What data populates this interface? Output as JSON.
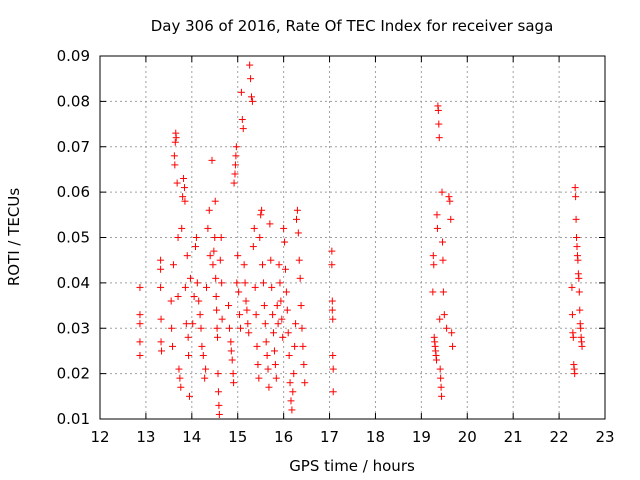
{
  "chart_data": {
    "type": "scatter",
    "title": "Day 306 of 2016, Rate Of TEC Index for receiver saga",
    "xlabel": "GPS time / hours",
    "ylabel": "ROTI / TECUs",
    "xlim": [
      12,
      23
    ],
    "ylim": [
      0.01,
      0.09
    ],
    "xticks": [
      "12",
      "13",
      "14",
      "15",
      "16",
      "17",
      "18",
      "19",
      "20",
      "21",
      "22",
      "23"
    ],
    "yticks": [
      "0.01",
      "0.02",
      "0.03",
      "0.04",
      "0.05",
      "0.06",
      "0.07",
      "0.08",
      "0.09"
    ],
    "grid": true,
    "marker": "+",
    "color": "#ff0000",
    "series": [
      {
        "name": "ROTI",
        "points": [
          [
            12.87,
            0.039
          ],
          [
            12.87,
            0.033
          ],
          [
            12.87,
            0.031
          ],
          [
            12.87,
            0.027
          ],
          [
            12.87,
            0.024
          ],
          [
            13.32,
            0.045
          ],
          [
            13.32,
            0.043
          ],
          [
            13.32,
            0.039
          ],
          [
            13.33,
            0.032
          ],
          [
            13.33,
            0.027
          ],
          [
            13.34,
            0.025
          ],
          [
            13.55,
            0.036
          ],
          [
            13.56,
            0.03
          ],
          [
            13.58,
            0.026
          ],
          [
            13.6,
            0.044
          ],
          [
            13.62,
            0.068
          ],
          [
            13.63,
            0.066
          ],
          [
            13.64,
            0.071
          ],
          [
            13.65,
            0.073
          ],
          [
            13.66,
            0.072
          ],
          [
            13.68,
            0.062
          ],
          [
            13.7,
            0.05
          ],
          [
            13.7,
            0.037
          ],
          [
            13.72,
            0.021
          ],
          [
            13.74,
            0.019
          ],
          [
            13.76,
            0.017
          ],
          [
            13.78,
            0.052
          ],
          [
            13.8,
            0.059
          ],
          [
            13.82,
            0.063
          ],
          [
            13.84,
            0.061
          ],
          [
            13.85,
            0.058
          ],
          [
            13.86,
            0.039
          ],
          [
            13.88,
            0.031
          ],
          [
            13.9,
            0.046
          ],
          [
            13.92,
            0.028
          ],
          [
            13.93,
            0.024
          ],
          [
            13.95,
            0.015
          ],
          [
            13.97,
            0.041
          ],
          [
            14.02,
            0.031
          ],
          [
            14.05,
            0.037
          ],
          [
            14.08,
            0.048
          ],
          [
            14.1,
            0.05
          ],
          [
            14.12,
            0.04
          ],
          [
            14.15,
            0.036
          ],
          [
            14.18,
            0.033
          ],
          [
            14.2,
            0.03
          ],
          [
            14.22,
            0.026
          ],
          [
            14.25,
            0.024
          ],
          [
            14.28,
            0.019
          ],
          [
            14.3,
            0.021
          ],
          [
            14.32,
            0.039
          ],
          [
            14.35,
            0.052
          ],
          [
            14.38,
            0.056
          ],
          [
            14.4,
            0.046
          ],
          [
            14.44,
            0.067
          ],
          [
            14.46,
            0.044
          ],
          [
            14.48,
            0.047
          ],
          [
            14.5,
            0.05
          ],
          [
            14.51,
            0.058
          ],
          [
            14.52,
            0.041
          ],
          [
            14.53,
            0.037
          ],
          [
            14.54,
            0.034
          ],
          [
            14.55,
            0.03
          ],
          [
            14.56,
            0.028
          ],
          [
            14.57,
            0.02
          ],
          [
            14.58,
            0.016
          ],
          [
            14.59,
            0.013
          ],
          [
            14.6,
            0.011
          ],
          [
            14.62,
            0.045
          ],
          [
            14.64,
            0.05
          ],
          [
            14.65,
            0.04
          ],
          [
            14.66,
            0.032
          ],
          [
            14.8,
            0.035
          ],
          [
            14.82,
            0.03
          ],
          [
            14.85,
            0.027
          ],
          [
            14.86,
            0.025
          ],
          [
            14.88,
            0.023
          ],
          [
            14.9,
            0.02
          ],
          [
            14.91,
            0.018
          ],
          [
            14.92,
            0.062
          ],
          [
            14.94,
            0.064
          ],
          [
            14.95,
            0.066
          ],
          [
            14.96,
            0.068
          ],
          [
            14.97,
            0.07
          ],
          [
            14.98,
            0.04
          ],
          [
            15.0,
            0.046
          ],
          [
            15.02,
            0.038
          ],
          [
            15.04,
            0.033
          ],
          [
            15.06,
            0.03
          ],
          [
            15.08,
            0.082
          ],
          [
            15.1,
            0.076
          ],
          [
            15.12,
            0.074
          ],
          [
            15.14,
            0.044
          ],
          [
            15.16,
            0.04
          ],
          [
            15.18,
            0.036
          ],
          [
            15.2,
            0.034
          ],
          [
            15.22,
            0.031
          ],
          [
            15.24,
            0.029
          ],
          [
            15.26,
            0.088
          ],
          [
            15.28,
            0.085
          ],
          [
            15.3,
            0.081
          ],
          [
            15.32,
            0.08
          ],
          [
            15.34,
            0.048
          ],
          [
            15.36,
            0.052
          ],
          [
            15.38,
            0.039
          ],
          [
            15.4,
            0.033
          ],
          [
            15.42,
            0.026
          ],
          [
            15.44,
            0.022
          ],
          [
            15.46,
            0.019
          ],
          [
            15.48,
            0.05
          ],
          [
            15.5,
            0.055
          ],
          [
            15.52,
            0.056
          ],
          [
            15.54,
            0.044
          ],
          [
            15.56,
            0.04
          ],
          [
            15.58,
            0.035
          ],
          [
            15.6,
            0.031
          ],
          [
            15.62,
            0.027
          ],
          [
            15.64,
            0.024
          ],
          [
            15.66,
            0.021
          ],
          [
            15.68,
            0.017
          ],
          [
            15.7,
            0.053
          ],
          [
            15.72,
            0.045
          ],
          [
            15.74,
            0.039
          ],
          [
            15.76,
            0.033
          ],
          [
            15.78,
            0.029
          ],
          [
            15.8,
            0.025
          ],
          [
            15.82,
            0.022
          ],
          [
            15.84,
            0.019
          ],
          [
            15.86,
            0.035
          ],
          [
            15.88,
            0.031
          ],
          [
            15.9,
            0.044
          ],
          [
            15.92,
            0.04
          ],
          [
            15.94,
            0.036
          ],
          [
            15.96,
            0.032
          ],
          [
            15.98,
            0.028
          ],
          [
            16.0,
            0.052
          ],
          [
            16.02,
            0.049
          ],
          [
            16.04,
            0.043
          ],
          [
            16.06,
            0.038
          ],
          [
            16.08,
            0.034
          ],
          [
            16.1,
            0.029
          ],
          [
            16.12,
            0.024
          ],
          [
            16.14,
            0.018
          ],
          [
            16.16,
            0.014
          ],
          [
            16.18,
            0.012
          ],
          [
            16.2,
            0.016
          ],
          [
            16.22,
            0.02
          ],
          [
            16.24,
            0.026
          ],
          [
            16.26,
            0.031
          ],
          [
            16.28,
            0.054
          ],
          [
            16.3,
            0.056
          ],
          [
            16.32,
            0.051
          ],
          [
            16.34,
            0.045
          ],
          [
            16.36,
            0.041
          ],
          [
            16.38,
            0.035
          ],
          [
            16.4,
            0.03
          ],
          [
            16.42,
            0.026
          ],
          [
            16.44,
            0.022
          ],
          [
            16.46,
            0.018
          ],
          [
            17.05,
            0.047
          ],
          [
            17.05,
            0.044
          ],
          [
            17.06,
            0.036
          ],
          [
            17.06,
            0.034
          ],
          [
            17.07,
            0.032
          ],
          [
            17.07,
            0.024
          ],
          [
            17.08,
            0.021
          ],
          [
            17.08,
            0.016
          ],
          [
            19.25,
            0.038
          ],
          [
            19.26,
            0.046
          ],
          [
            19.27,
            0.044
          ],
          [
            19.28,
            0.028
          ],
          [
            19.29,
            0.027
          ],
          [
            19.3,
            0.026
          ],
          [
            19.31,
            0.025
          ],
          [
            19.32,
            0.024
          ],
          [
            19.33,
            0.023
          ],
          [
            19.34,
            0.055
          ],
          [
            19.35,
            0.052
          ],
          [
            19.36,
            0.079
          ],
          [
            19.37,
            0.078
          ],
          [
            19.38,
            0.075
          ],
          [
            19.39,
            0.072
          ],
          [
            19.4,
            0.032
          ],
          [
            19.41,
            0.021
          ],
          [
            19.42,
            0.019
          ],
          [
            19.43,
            0.017
          ],
          [
            19.44,
            0.015
          ],
          [
            19.45,
            0.06
          ],
          [
            19.46,
            0.049
          ],
          [
            19.47,
            0.045
          ],
          [
            19.48,
            0.038
          ],
          [
            19.5,
            0.033
          ],
          [
            19.55,
            0.03
          ],
          [
            19.6,
            0.059
          ],
          [
            19.62,
            0.058
          ],
          [
            19.64,
            0.054
          ],
          [
            19.66,
            0.029
          ],
          [
            19.68,
            0.026
          ],
          [
            22.28,
            0.039
          ],
          [
            22.29,
            0.033
          ],
          [
            22.3,
            0.029
          ],
          [
            22.31,
            0.028
          ],
          [
            22.32,
            0.022
          ],
          [
            22.33,
            0.021
          ],
          [
            22.34,
            0.02
          ],
          [
            22.35,
            0.061
          ],
          [
            22.36,
            0.059
          ],
          [
            22.37,
            0.054
          ],
          [
            22.38,
            0.05
          ],
          [
            22.39,
            0.048
          ],
          [
            22.4,
            0.046
          ],
          [
            22.41,
            0.045
          ],
          [
            22.42,
            0.042
          ],
          [
            22.43,
            0.041
          ],
          [
            22.44,
            0.038
          ],
          [
            22.45,
            0.034
          ],
          [
            22.46,
            0.031
          ],
          [
            22.47,
            0.03
          ],
          [
            22.48,
            0.028
          ],
          [
            22.49,
            0.027
          ],
          [
            22.5,
            0.026
          ]
        ]
      }
    ]
  }
}
